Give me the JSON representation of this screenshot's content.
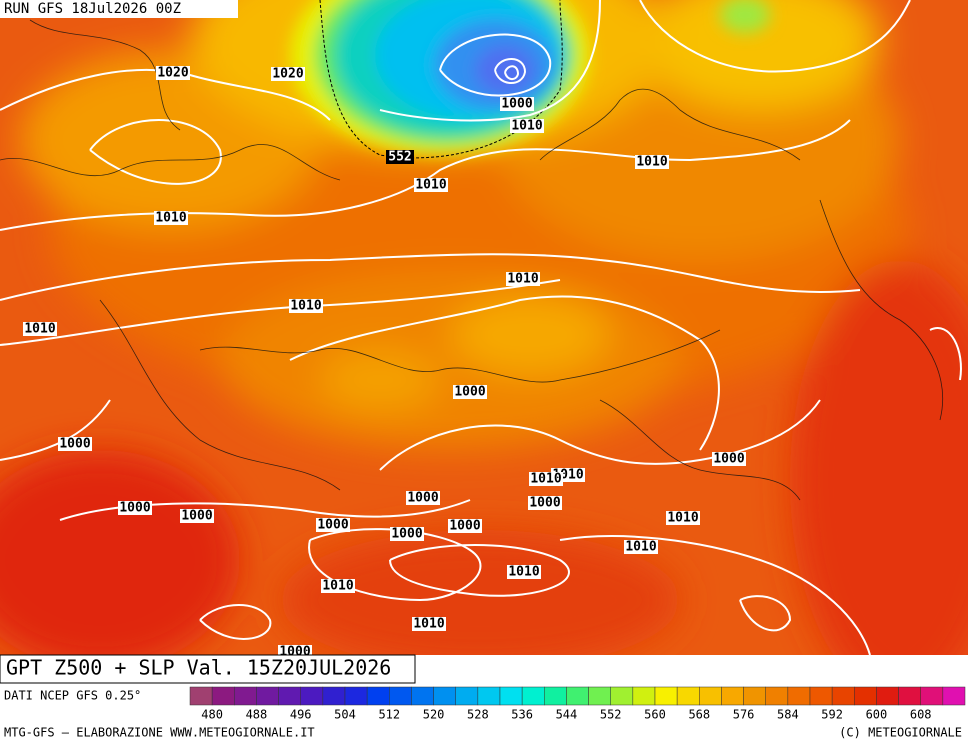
{
  "header": {
    "run": "RUN GFS 18Jul2026 00Z"
  },
  "map": {
    "isobar_labels": [
      1020,
      1020,
      1000,
      1010,
      1010,
      1010,
      1010,
      1010,
      1010,
      1010,
      1000,
      1000,
      1000,
      1010,
      1000,
      1000,
      1000,
      1000,
      1010,
      1000,
      1000,
      1000,
      1010,
      1010,
      1010,
      1010,
      1010,
      1000
    ],
    "contour_label": 552
  },
  "footer": {
    "title": "GPT Z500 + SLP Val. 15Z20JUL2026",
    "source": "DATI NCEP GFS 0.25°",
    "credit_left": "MTG-GFS — ELABORAZIONE WWW.METEOGIORNALE.IT",
    "credit_right": "(C) METEOGIORNALE"
  },
  "colorbar": {
    "ticks": [
      480,
      488,
      496,
      504,
      512,
      520,
      528,
      536,
      544,
      552,
      560,
      568,
      576,
      584,
      592,
      600,
      608
    ],
    "colors": [
      "#a04070",
      "#8c1a80",
      "#801a90",
      "#701aa0",
      "#601ab0",
      "#4c1ac0",
      "#3020d0",
      "#1c28e0",
      "#0040f0",
      "#0058f0",
      "#0074f0",
      "#0090f0",
      "#00acf0",
      "#00c8f0",
      "#00e0f0",
      "#00f0d0",
      "#10f0a0",
      "#40f070",
      "#70f050",
      "#a0f030",
      "#d0f010",
      "#f8f000",
      "#f8d800",
      "#f8c000",
      "#f8a800",
      "#f09400",
      "#f08000",
      "#f06c00",
      "#ee5800",
      "#e84400",
      "#e43000",
      "#e01c10",
      "#e01040",
      "#e01078",
      "#e010b0"
    ]
  }
}
